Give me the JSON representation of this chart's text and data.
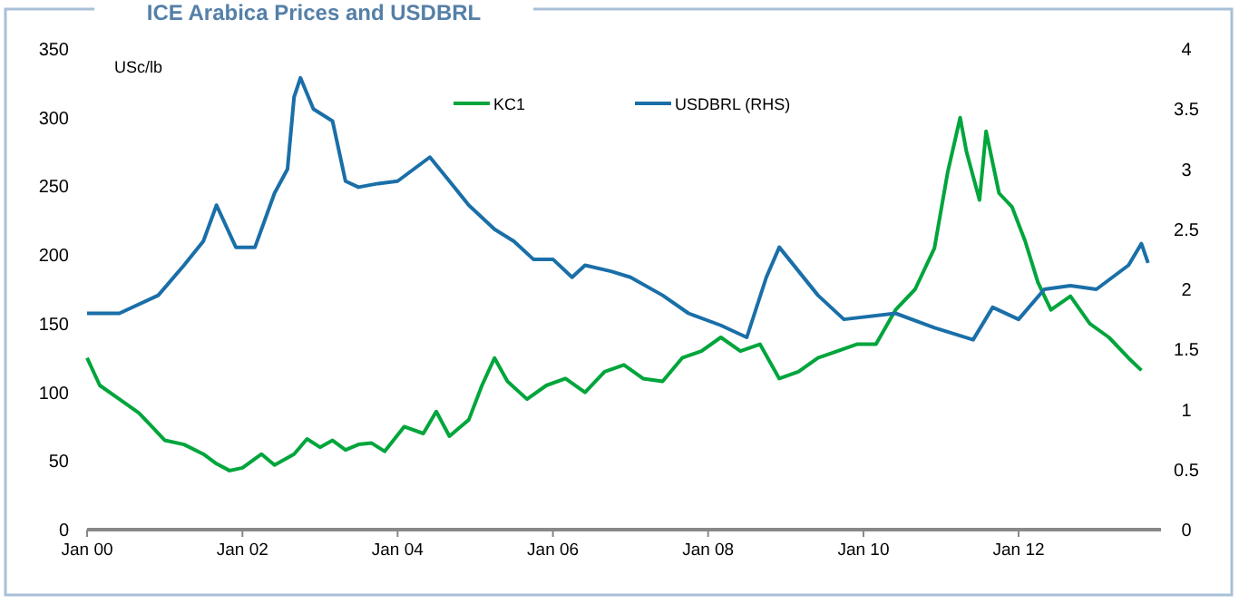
{
  "chart_data": {
    "type": "line",
    "title": "ICE Arabica Prices and USDBRL",
    "ylabel": "USc/lb",
    "legend": "top",
    "marker": "none",
    "line_style": "solid",
    "xlim": [
      "2000-01",
      "2013-11"
    ],
    "xticks": [
      {
        "value": "2000-01",
        "label": "Jan 00"
      },
      {
        "value": "2002-01",
        "label": "Jan 02"
      },
      {
        "value": "2004-01",
        "label": "Jan 04"
      },
      {
        "value": "2006-01",
        "label": "Jan 06"
      },
      {
        "value": "2008-01",
        "label": "Jan 08"
      },
      {
        "value": "2010-01",
        "label": "Jan 10"
      },
      {
        "value": "2012-01",
        "label": "Jan 12"
      }
    ],
    "ylim": [
      0,
      350
    ],
    "yticks": [
      0,
      50,
      100,
      150,
      200,
      250,
      300,
      350
    ],
    "y2lim": [
      0,
      4
    ],
    "y2ticks": [
      0,
      0.5,
      1,
      1.5,
      2,
      2.5,
      3,
      3.5,
      4
    ],
    "series": [
      {
        "name": "KC1",
        "color": "#00a53c",
        "x": [
          "2000-01",
          "2000-03",
          "2000-06",
          "2000-09",
          "2000-11",
          "2001-01",
          "2001-04",
          "2001-07",
          "2001-09",
          "2001-11",
          "2002-01",
          "2002-04",
          "2002-06",
          "2002-09",
          "2002-11",
          "2003-01",
          "2003-03",
          "2003-05",
          "2003-07",
          "2003-09",
          "2003-11",
          "2004-02",
          "2004-05",
          "2004-07",
          "2004-09",
          "2004-12",
          "2005-02",
          "2005-04",
          "2005-06",
          "2005-09",
          "2005-12",
          "2006-03",
          "2006-06",
          "2006-09",
          "2006-12",
          "2007-03",
          "2007-06",
          "2007-09",
          "2007-12",
          "2008-03",
          "2008-06",
          "2008-09",
          "2008-12",
          "2009-03",
          "2009-06",
          "2009-09",
          "2009-12",
          "2010-03",
          "2010-06",
          "2010-09",
          "2010-12",
          "2011-02",
          "2011-04",
          "2011-05",
          "2011-07",
          "2011-08",
          "2011-10",
          "2011-12",
          "2012-02",
          "2012-04",
          "2012-06",
          "2012-09",
          "2012-12",
          "2013-03",
          "2013-06",
          "2013-08"
        ],
        "values": [
          125,
          105,
          95,
          85,
          75,
          65,
          62,
          55,
          48,
          43,
          45,
          55,
          47,
          55,
          66,
          60,
          65,
          58,
          62,
          63,
          57,
          75,
          70,
          86,
          68,
          80,
          105,
          125,
          108,
          95,
          105,
          110,
          100,
          115,
          120,
          110,
          108,
          125,
          130,
          140,
          130,
          135,
          110,
          115,
          125,
          130,
          135,
          135,
          160,
          175,
          205,
          260,
          300,
          275,
          240,
          290,
          245,
          235,
          210,
          180,
          160,
          170,
          150,
          140,
          125,
          116
        ]
      },
      {
        "name": "USDBRL (RHS)",
        "color": "#1a6fa8",
        "axis": "y2",
        "x": [
          "2000-01",
          "2000-06",
          "2000-12",
          "2001-04",
          "2001-07",
          "2001-09",
          "2001-12",
          "2002-03",
          "2002-06",
          "2002-08",
          "2002-09",
          "2002-10",
          "2002-12",
          "2003-03",
          "2003-05",
          "2003-07",
          "2003-10",
          "2004-01",
          "2004-06",
          "2004-09",
          "2004-12",
          "2005-04",
          "2005-07",
          "2005-10",
          "2006-01",
          "2006-04",
          "2006-06",
          "2006-10",
          "2007-01",
          "2007-06",
          "2007-10",
          "2008-03",
          "2008-07",
          "2008-10",
          "2008-12",
          "2009-06",
          "2009-10",
          "2010-06",
          "2010-12",
          "2011-06",
          "2011-09",
          "2012-01",
          "2012-05",
          "2012-09",
          "2013-01",
          "2013-06",
          "2013-08",
          "2013-09"
        ],
        "values": [
          1.8,
          1.8,
          1.95,
          2.2,
          2.4,
          2.7,
          2.35,
          2.35,
          2.8,
          3.0,
          3.6,
          3.76,
          3.5,
          3.4,
          2.9,
          2.85,
          2.88,
          2.9,
          3.1,
          2.9,
          2.7,
          2.5,
          2.4,
          2.25,
          2.25,
          2.1,
          2.2,
          2.15,
          2.1,
          1.95,
          1.8,
          1.7,
          1.6,
          2.1,
          2.35,
          1.95,
          1.75,
          1.8,
          1.68,
          1.58,
          1.85,
          1.75,
          2.0,
          2.03,
          2.0,
          2.2,
          2.38,
          2.22
        ]
      }
    ]
  }
}
